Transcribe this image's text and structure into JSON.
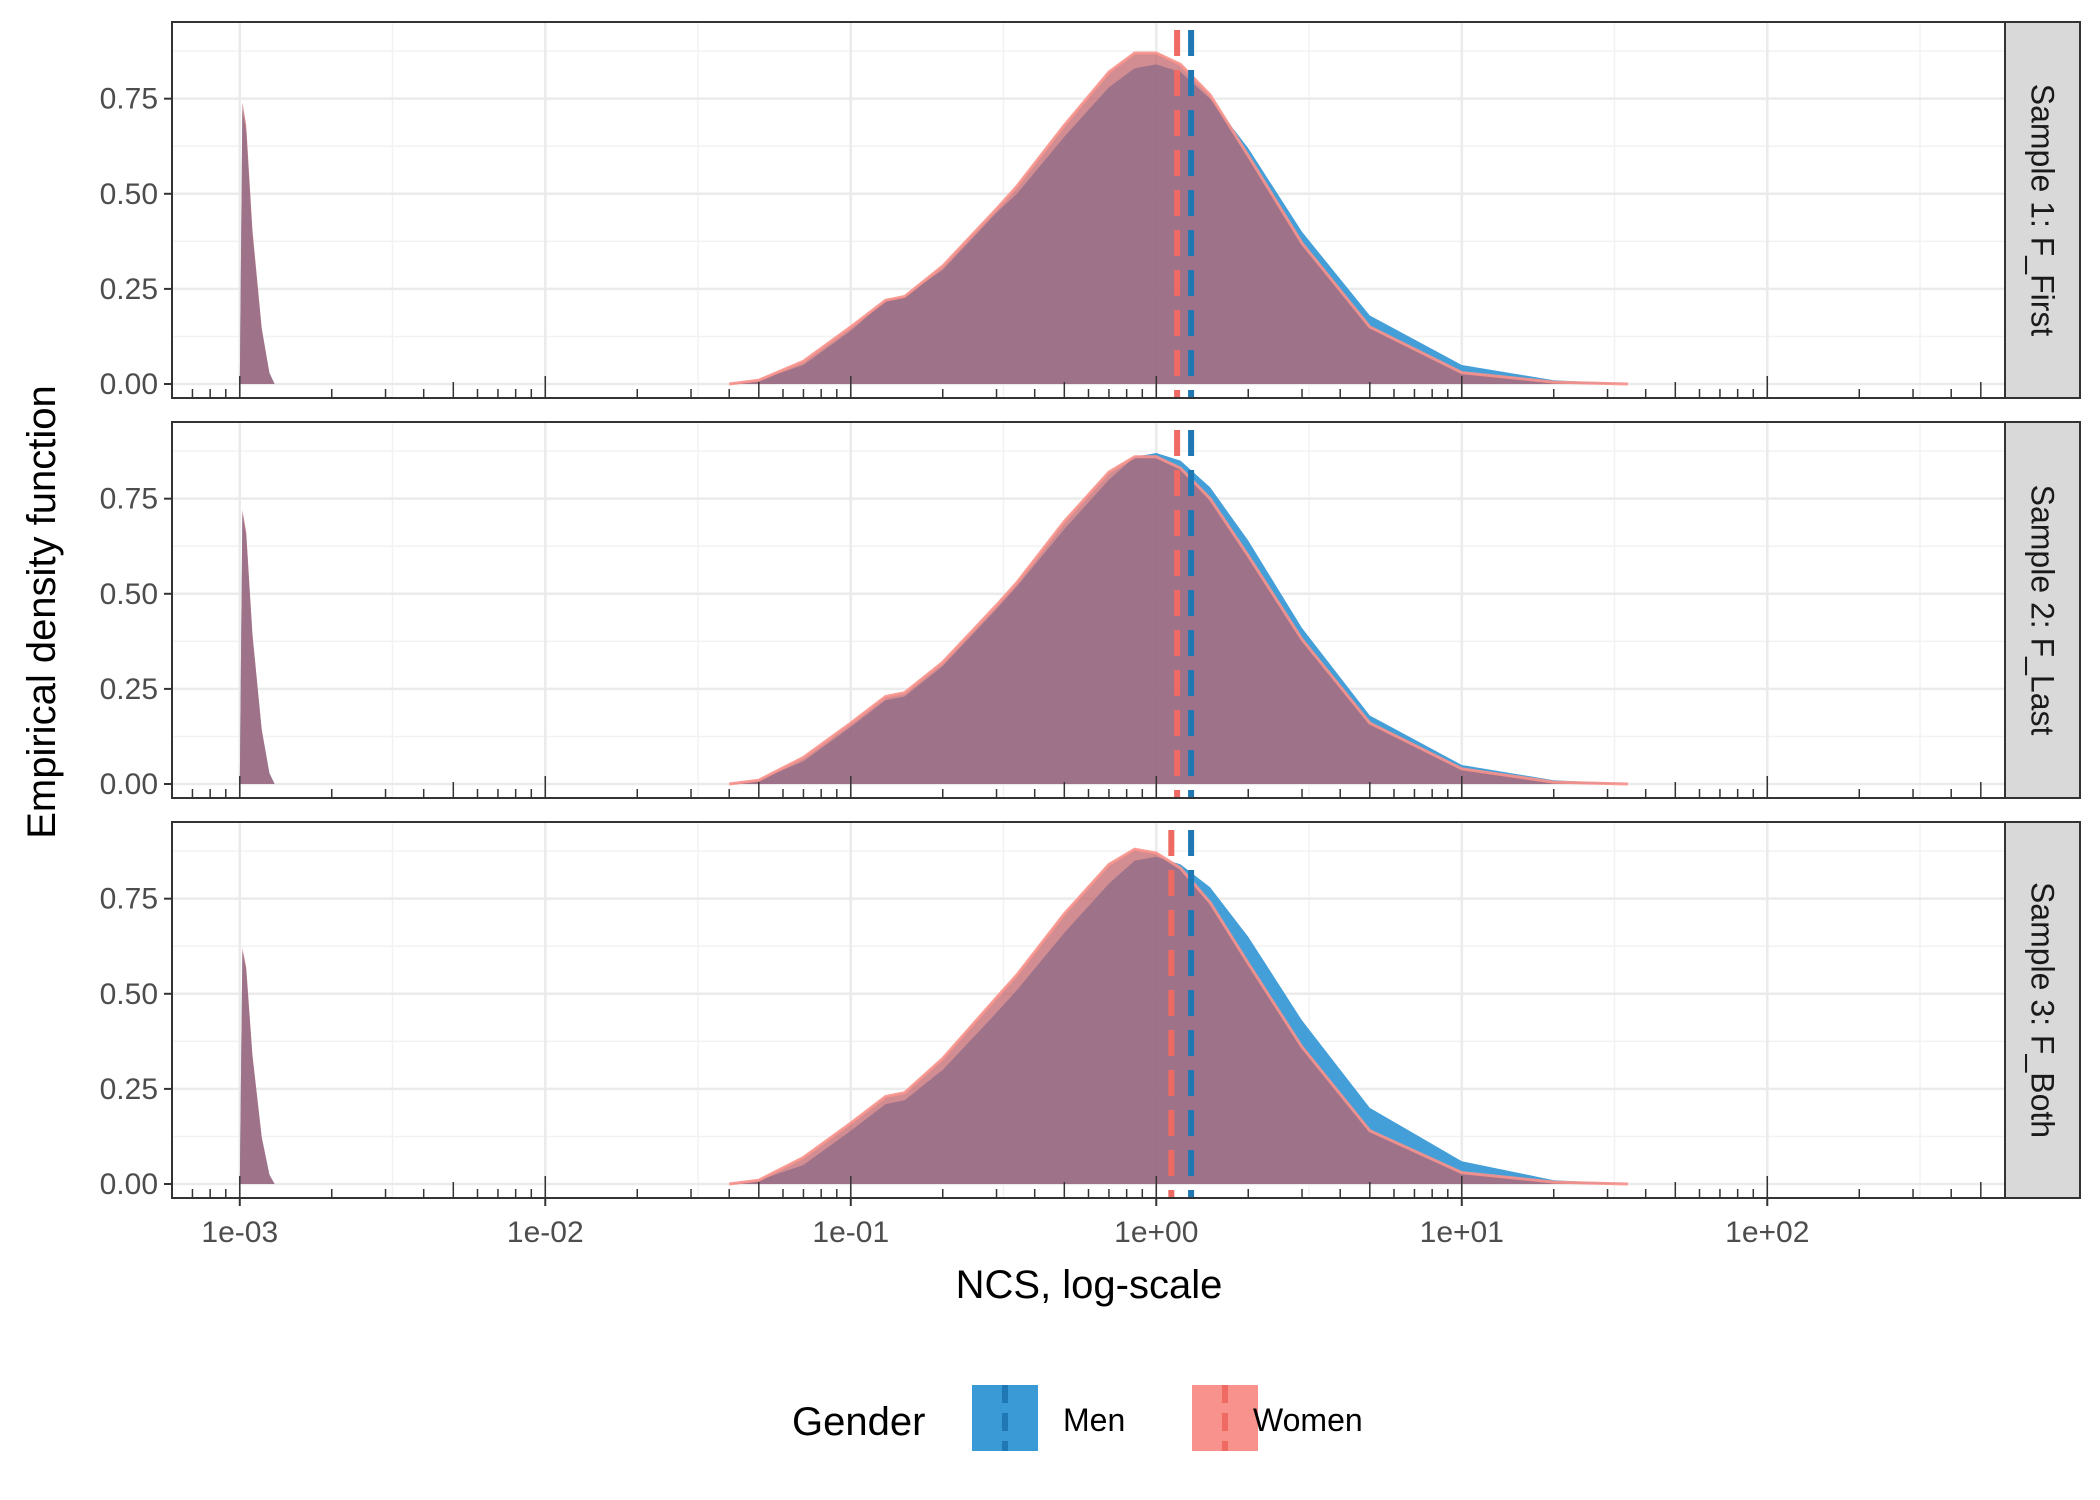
{
  "chart_data": {
    "type": "area",
    "xlabel": "NCS, log-scale",
    "ylabel": "Empirical density function",
    "x_scale": "log10",
    "xlim": [
      0.0006,
      600
    ],
    "ylim": [
      0,
      0.92
    ],
    "x_tick_values": [
      0.001,
      0.01,
      0.1,
      1,
      10,
      100
    ],
    "x_tick_labels": [
      "1e-03",
      "1e-02",
      "1e-01",
      "1e+00",
      "1e+01",
      "1e+02"
    ],
    "y_tick_values": [
      0,
      0.25,
      0.5,
      0.75
    ],
    "y_tick_labels": [
      "0.00",
      "0.25",
      "0.50",
      "0.75"
    ],
    "grid": true,
    "legend": {
      "title": "Gender",
      "position": "bottom",
      "entries": [
        {
          "label": "Men",
          "fill": "#3a9ad6",
          "line": "#1f78b4"
        },
        {
          "label": "Women",
          "fill": "#f8928c",
          "line": "#ee6a62"
        }
      ]
    },
    "panels": [
      {
        "strip": "Sample 1: F_First",
        "spike": {
          "men": 0.72,
          "women": 0.74
        },
        "series": [
          {
            "name": "Men",
            "mean_line": 1.3,
            "x": [
              0.04,
              0.05,
              0.07,
              0.1,
              0.13,
              0.15,
              0.2,
              0.3,
              0.35,
              0.5,
              0.7,
              0.85,
              1.0,
              1.2,
              1.5,
              2.0,
              3.0,
              5.0,
              10,
              20,
              35
            ],
            "y": [
              0,
              0.01,
              0.05,
              0.14,
              0.22,
              0.23,
              0.3,
              0.45,
              0.5,
              0.65,
              0.78,
              0.83,
              0.84,
              0.82,
              0.75,
              0.62,
              0.4,
              0.18,
              0.05,
              0.01,
              0
            ]
          },
          {
            "name": "Women",
            "mean_line": 1.17,
            "x": [
              0.04,
              0.05,
              0.07,
              0.1,
              0.13,
              0.15,
              0.2,
              0.3,
              0.35,
              0.5,
              0.7,
              0.85,
              1.0,
              1.2,
              1.5,
              2.0,
              3.0,
              5.0,
              10,
              20,
              35
            ],
            "y": [
              0,
              0.01,
              0.06,
              0.15,
              0.22,
              0.23,
              0.31,
              0.46,
              0.52,
              0.68,
              0.82,
              0.87,
              0.87,
              0.84,
              0.76,
              0.6,
              0.37,
              0.15,
              0.03,
              0.005,
              0
            ]
          }
        ]
      },
      {
        "strip": "Sample 2: F_Last",
        "spike": {
          "men": 0.71,
          "women": 0.72
        },
        "series": [
          {
            "name": "Men",
            "mean_line": 1.3,
            "x": [
              0.04,
              0.05,
              0.07,
              0.1,
              0.13,
              0.15,
              0.2,
              0.3,
              0.35,
              0.5,
              0.7,
              0.85,
              1.0,
              1.2,
              1.5,
              2.0,
              3.0,
              5.0,
              10,
              20,
              35
            ],
            "y": [
              0,
              0.01,
              0.06,
              0.15,
              0.22,
              0.23,
              0.31,
              0.46,
              0.52,
              0.67,
              0.8,
              0.86,
              0.87,
              0.85,
              0.78,
              0.64,
              0.41,
              0.18,
              0.05,
              0.01,
              0
            ]
          },
          {
            "name": "Women",
            "mean_line": 1.17,
            "x": [
              0.04,
              0.05,
              0.07,
              0.1,
              0.13,
              0.15,
              0.2,
              0.3,
              0.35,
              0.5,
              0.7,
              0.85,
              1.0,
              1.2,
              1.5,
              2.0,
              3.0,
              5.0,
              10,
              20,
              35
            ],
            "y": [
              0,
              0.01,
              0.07,
              0.16,
              0.23,
              0.24,
              0.32,
              0.47,
              0.53,
              0.69,
              0.82,
              0.86,
              0.86,
              0.83,
              0.75,
              0.6,
              0.38,
              0.16,
              0.04,
              0.005,
              0
            ]
          }
        ]
      },
      {
        "strip": "Sample 3: F_Both",
        "spike": {
          "men": 0.61,
          "women": 0.62
        },
        "series": [
          {
            "name": "Men",
            "mean_line": 1.3,
            "x": [
              0.04,
              0.05,
              0.07,
              0.1,
              0.13,
              0.15,
              0.2,
              0.3,
              0.35,
              0.5,
              0.7,
              0.85,
              1.0,
              1.2,
              1.5,
              2.0,
              3.0,
              5.0,
              10,
              20,
              35
            ],
            "y": [
              0,
              0.01,
              0.05,
              0.14,
              0.21,
              0.22,
              0.3,
              0.45,
              0.51,
              0.66,
              0.79,
              0.85,
              0.86,
              0.84,
              0.78,
              0.65,
              0.43,
              0.2,
              0.06,
              0.01,
              0
            ]
          },
          {
            "name": "Women",
            "mean_line": 1.12,
            "x": [
              0.04,
              0.05,
              0.07,
              0.1,
              0.13,
              0.15,
              0.2,
              0.3,
              0.35,
              0.5,
              0.7,
              0.85,
              1.0,
              1.2,
              1.5,
              2.0,
              3.0,
              5.0,
              10,
              20,
              35
            ],
            "y": [
              0,
              0.01,
              0.07,
              0.16,
              0.23,
              0.24,
              0.33,
              0.49,
              0.55,
              0.71,
              0.84,
              0.88,
              0.87,
              0.83,
              0.74,
              0.58,
              0.36,
              0.14,
              0.03,
              0.005,
              0
            ]
          }
        ]
      }
    ]
  }
}
